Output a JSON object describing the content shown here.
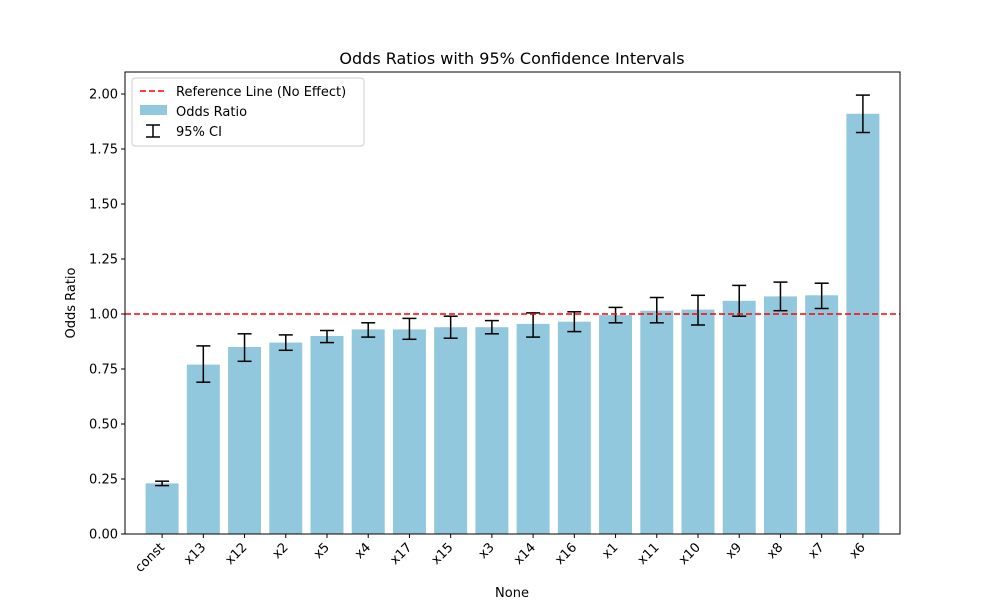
{
  "chart_data": {
    "type": "bar",
    "title": "Odds Ratios with 95% Confidence Intervals",
    "xlabel": "None",
    "ylabel": "Odds Ratio",
    "ylim": [
      0,
      2.1
    ],
    "yticks": [
      "0.00",
      "0.25",
      "0.50",
      "0.75",
      "1.00",
      "1.25",
      "1.50",
      "1.75",
      "2.00"
    ],
    "categories": [
      "const",
      "x13",
      "x12",
      "x2",
      "x5",
      "x4",
      "x17",
      "x15",
      "x3",
      "x14",
      "x16",
      "x1",
      "x11",
      "x10",
      "x9",
      "x8",
      "x7",
      "x6"
    ],
    "series": [
      {
        "name": "Odds Ratio",
        "values": [
          0.23,
          0.77,
          0.85,
          0.87,
          0.9,
          0.93,
          0.93,
          0.94,
          0.94,
          0.955,
          0.965,
          0.995,
          1.015,
          1.02,
          1.06,
          1.08,
          1.085,
          1.91
        ],
        "ci_lower": [
          0.22,
          0.69,
          0.785,
          0.835,
          0.87,
          0.895,
          0.885,
          0.89,
          0.91,
          0.895,
          0.92,
          0.96,
          0.96,
          0.95,
          0.99,
          1.015,
          1.025,
          1.825
        ],
        "ci_upper": [
          0.24,
          0.855,
          0.91,
          0.905,
          0.925,
          0.96,
          0.98,
          0.99,
          0.97,
          1.005,
          1.01,
          1.03,
          1.075,
          1.085,
          1.13,
          1.145,
          1.14,
          1.995
        ]
      }
    ],
    "reference_line": {
      "value": 1.0,
      "label": "Reference Line (No Effect)",
      "color": "#ff0000",
      "style": "dashed"
    },
    "legend": {
      "placement": "top-left",
      "entries": [
        "Reference Line (No Effect)",
        "Odds Ratio",
        "95% CI"
      ]
    },
    "bar_color": "#92c8dd",
    "errorbar_color": "#000000",
    "grid": false
  }
}
